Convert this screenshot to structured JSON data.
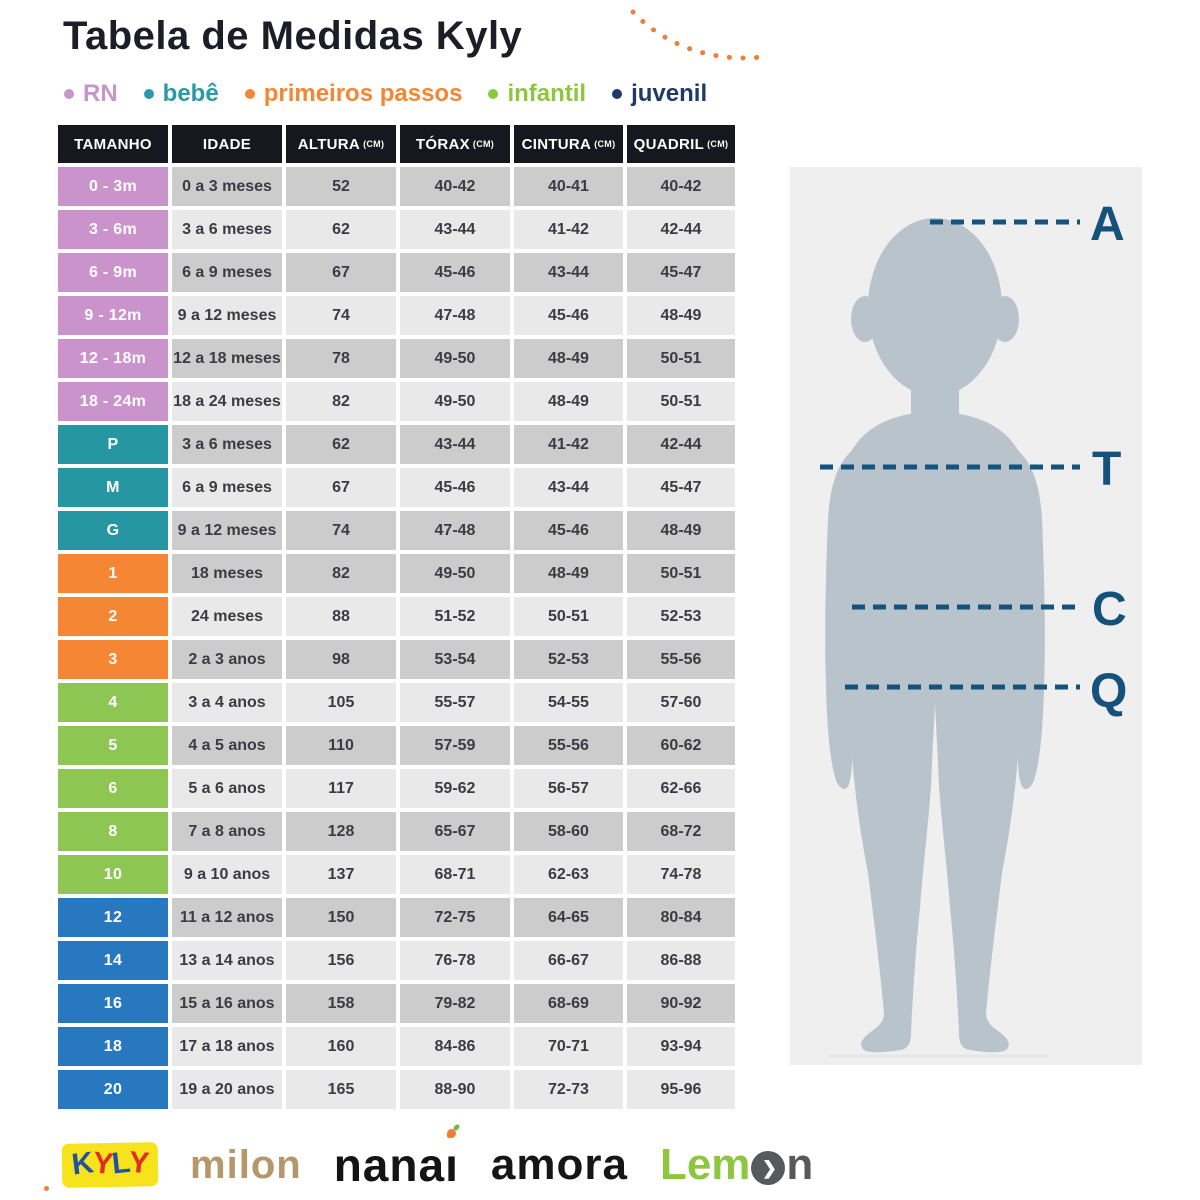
{
  "title": "Tabela de Medidas Kyly",
  "legend": [
    {
      "label": "RN",
      "color": "#c795ca"
    },
    {
      "label": "bebê",
      "color": "#2a9aa6"
    },
    {
      "label": "primeiros passos",
      "color": "#f58634"
    },
    {
      "label": "infantil",
      "color": "#8dc63f"
    },
    {
      "label": "juvenil",
      "color": "#1f3a68"
    }
  ],
  "table": {
    "headers": [
      {
        "label": "TAMANHO",
        "unit": ""
      },
      {
        "label": "IDADE",
        "unit": ""
      },
      {
        "label": "ALTURA",
        "unit": "(CM)"
      },
      {
        "label": "TÓRAX",
        "unit": "(CM)"
      },
      {
        "label": "CINTURA",
        "unit": "(CM)"
      },
      {
        "label": "QUADRIL",
        "unit": "(CM)"
      }
    ],
    "rows": [
      {
        "size": "0 - 3m",
        "group": "rn",
        "shade": "dark",
        "cells": [
          "0 a 3 meses",
          "52",
          "40-42",
          "40-41",
          "40-42"
        ]
      },
      {
        "size": "3 - 6m",
        "group": "rn",
        "shade": "light",
        "cells": [
          "3 a 6 meses",
          "62",
          "43-44",
          "41-42",
          "42-44"
        ]
      },
      {
        "size": "6 - 9m",
        "group": "rn",
        "shade": "dark",
        "cells": [
          "6 a 9 meses",
          "67",
          "45-46",
          "43-44",
          "45-47"
        ]
      },
      {
        "size": "9 - 12m",
        "group": "rn",
        "shade": "light",
        "cells": [
          "9 a 12 meses",
          "74",
          "47-48",
          "45-46",
          "48-49"
        ]
      },
      {
        "size": "12 - 18m",
        "group": "rn",
        "shade": "dark",
        "cells": [
          "12 a 18 meses",
          "78",
          "49-50",
          "48-49",
          "50-51"
        ]
      },
      {
        "size": "18 - 24m",
        "group": "rn",
        "shade": "light",
        "cells": [
          "18 a 24 meses",
          "82",
          "49-50",
          "48-49",
          "50-51"
        ]
      },
      {
        "size": "P",
        "group": "bebe",
        "shade": "dark",
        "cells": [
          "3 a 6 meses",
          "62",
          "43-44",
          "41-42",
          "42-44"
        ]
      },
      {
        "size": "M",
        "group": "bebe",
        "shade": "light",
        "cells": [
          "6 a 9 meses",
          "67",
          "45-46",
          "43-44",
          "45-47"
        ]
      },
      {
        "size": "G",
        "group": "bebe",
        "shade": "dark",
        "cells": [
          "9 a 12 meses",
          "74",
          "47-48",
          "45-46",
          "48-49"
        ]
      },
      {
        "size": "1",
        "group": "pp",
        "shade": "dark",
        "cells": [
          "18 meses",
          "82",
          "49-50",
          "48-49",
          "50-51"
        ]
      },
      {
        "size": "2",
        "group": "pp",
        "shade": "light",
        "cells": [
          "24 meses",
          "88",
          "51-52",
          "50-51",
          "52-53"
        ]
      },
      {
        "size": "3",
        "group": "pp",
        "shade": "dark",
        "cells": [
          "2 a 3 anos",
          "98",
          "53-54",
          "52-53",
          "55-56"
        ]
      },
      {
        "size": "4",
        "group": "infantil",
        "shade": "light",
        "cells": [
          "3 a 4 anos",
          "105",
          "55-57",
          "54-55",
          "57-60"
        ]
      },
      {
        "size": "5",
        "group": "infantil",
        "shade": "dark",
        "cells": [
          "4 a 5 anos",
          "110",
          "57-59",
          "55-56",
          "60-62"
        ]
      },
      {
        "size": "6",
        "group": "infantil",
        "shade": "light",
        "cells": [
          "5 a 6 anos",
          "117",
          "59-62",
          "56-57",
          "62-66"
        ]
      },
      {
        "size": "8",
        "group": "infantil",
        "shade": "dark",
        "cells": [
          "7 a 8 anos",
          "128",
          "65-67",
          "58-60",
          "68-72"
        ]
      },
      {
        "size": "10",
        "group": "infantil",
        "shade": "light",
        "cells": [
          "9 a 10 anos",
          "137",
          "68-71",
          "62-63",
          "74-78"
        ]
      },
      {
        "size": "12",
        "group": "juvenil",
        "shade": "dark",
        "cells": [
          "11 a 12 anos",
          "150",
          "72-75",
          "64-65",
          "80-84"
        ]
      },
      {
        "size": "14",
        "group": "juvenil",
        "shade": "light",
        "cells": [
          "13 a 14 anos",
          "156",
          "76-78",
          "66-67",
          "86-88"
        ]
      },
      {
        "size": "16",
        "group": "juvenil",
        "shade": "dark",
        "cells": [
          "15 a 16 anos",
          "158",
          "79-82",
          "68-69",
          "90-92"
        ]
      },
      {
        "size": "18",
        "group": "juvenil",
        "shade": "light",
        "cells": [
          "17 a 18 anos",
          "160",
          "84-86",
          "70-71",
          "93-94"
        ]
      },
      {
        "size": "20",
        "group": "juvenil",
        "shade": "light",
        "cells": [
          "19 a 20 anos",
          "165",
          "88-90",
          "72-73",
          "95-96"
        ]
      }
    ]
  },
  "figure": {
    "labels": [
      "A",
      "T",
      "C",
      "Q"
    ]
  },
  "logos": {
    "kyly": "KYLY",
    "milon": "milon",
    "nanai": "nanai",
    "amora": "amora",
    "lemon": "Lemon"
  },
  "palette": {
    "groups": {
      "rn": "#cb93cb",
      "bebe": "#2697a2",
      "pp": "#f58634",
      "infantil": "#8dc653",
      "juvenil": "#2878bf"
    },
    "row_dark": "#cccccc",
    "row_light": "#e9e9e9",
    "header_bg": "#17171f",
    "kyly_blue": "#2153a0",
    "kyly_red": "#e02d28",
    "accent_navy": "#14527b",
    "silhouette": "#b8c3cc",
    "panel_bg": "#efefef",
    "arc_orange": "#e8813d"
  }
}
